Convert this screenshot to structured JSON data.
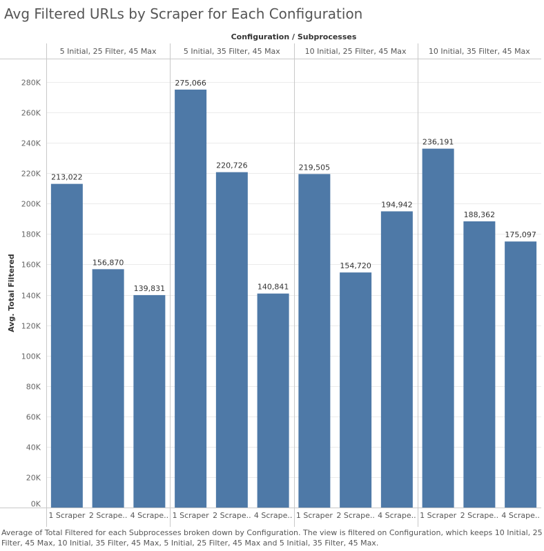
{
  "title": "Avg Filtered URLs by Scraper for Each Configuration",
  "caption": "Average of Total Filtered for each Subprocesses broken down by Configuration.  The view is filtered on Configuration, which keeps 10 Initial, 25 Filter, 45 Max, 10 Initial, 35 Filter, 45 Max, 5 Initial, 25 Filter, 45 Max and 5 Initial, 35 Filter, 45 Max.",
  "colors": {
    "bar": "#4e79a7",
    "grid": "#ebebeb",
    "divider": "#c8c8c8"
  },
  "chart_data": {
    "type": "bar",
    "column_header": "Configuration / Subprocesses",
    "ylabel": "Avg. Total Filtered",
    "ylim": [
      0,
      295000
    ],
    "yticks": [
      0,
      20000,
      40000,
      60000,
      80000,
      100000,
      120000,
      140000,
      160000,
      180000,
      200000,
      220000,
      240000,
      260000,
      280000
    ],
    "ytick_labels": [
      "0K",
      "20K",
      "40K",
      "60K",
      "80K",
      "100K",
      "120K",
      "140K",
      "160K",
      "180K",
      "200K",
      "220K",
      "240K",
      "260K",
      "280K"
    ],
    "panels": [
      {
        "name": "5 Initial, 25 Filter, 45 Max",
        "categories": [
          "1 Scraper",
          "2 Scrape..",
          "4 Scrape.."
        ],
        "values": [
          213022,
          156870,
          139831
        ],
        "labels": [
          "213,022",
          "156,870",
          "139,831"
        ]
      },
      {
        "name": "5 Initial, 35 Filter, 45 Max",
        "categories": [
          "1 Scraper",
          "2 Scrape..",
          "4 Scrape.."
        ],
        "values": [
          275066,
          220726,
          140841
        ],
        "labels": [
          "275,066",
          "220,726",
          "140,841"
        ]
      },
      {
        "name": "10 Initial, 25 Filter, 45 Max",
        "categories": [
          "1 Scraper",
          "2 Scrape..",
          "4 Scrape.."
        ],
        "values": [
          219505,
          154720,
          194942
        ],
        "labels": [
          "219,505",
          "154,720",
          "194,942"
        ]
      },
      {
        "name": "10 Initial, 35 Filter, 45 Max",
        "categories": [
          "1 Scraper",
          "2 Scrape..",
          "4 Scrape.."
        ],
        "values": [
          236191,
          188362,
          175097
        ],
        "labels": [
          "236,191",
          "188,362",
          "175,097"
        ]
      }
    ]
  }
}
